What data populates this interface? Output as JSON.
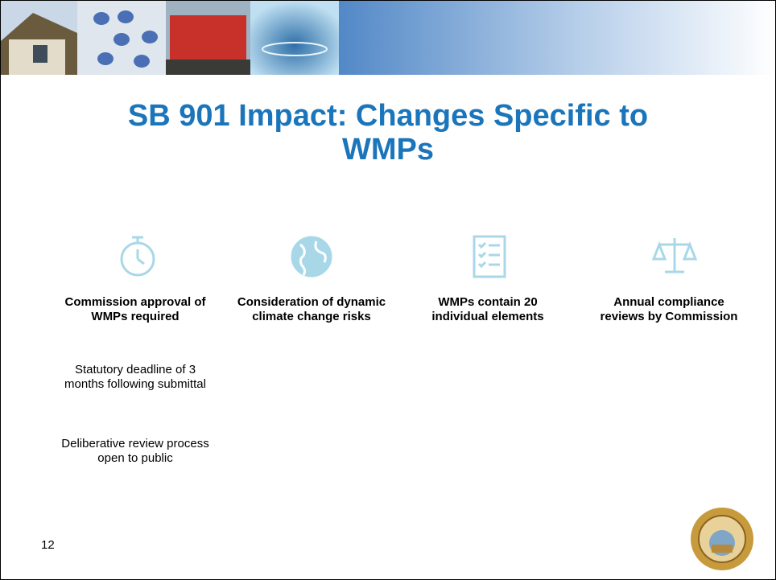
{
  "title": "SB 901 Impact: Changes Specific to WMPs",
  "columns": [
    {
      "heading": "Commission approval of WMPs required",
      "notes": [
        "Statutory deadline of 3 months following submittal",
        "Deliberative review process open to public"
      ]
    },
    {
      "heading": "Consideration of dynamic climate change risks",
      "notes": []
    },
    {
      "heading": "WMPs contain 20 individual elements",
      "notes": []
    },
    {
      "heading": "Annual compliance reviews by Commission",
      "notes": []
    }
  ],
  "page_number": "12"
}
